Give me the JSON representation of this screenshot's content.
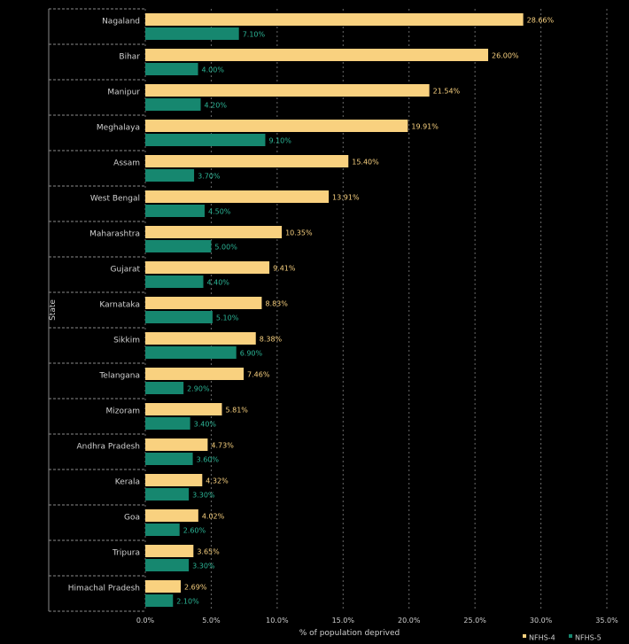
{
  "chart_data": {
    "type": "bar",
    "orientation": "horizontal",
    "categories": [
      "Nagaland",
      "Bihar",
      "Manipur",
      "Meghalaya",
      "Assam",
      "West Bengal",
      "Maharashtra",
      "Gujarat",
      "Karnataka",
      "Sikkim",
      "Telangana",
      "Mizoram",
      "Andhra Pradesh",
      "Kerala",
      "Goa",
      "Tripura",
      "Himachal Pradesh"
    ],
    "series": [
      {
        "name": "NFHS-4",
        "color": "#f9d17f",
        "values": [
          28.66,
          26.0,
          21.54,
          19.91,
          15.4,
          13.91,
          10.35,
          9.41,
          8.83,
          8.38,
          7.46,
          5.81,
          4.73,
          4.32,
          4.02,
          3.65,
          2.69
        ],
        "labels": [
          "28.66%",
          "26.00%",
          "21.54%",
          "19.91%",
          "15.40%",
          "13.91%",
          "10.35%",
          "9.41%",
          "8.83%",
          "8.38%",
          "7.46%",
          "5.81%",
          "4.73%",
          "4.32%",
          "4.02%",
          "3.65%",
          "2.69%"
        ]
      },
      {
        "name": "NFHS-5",
        "color": "#16876f",
        "values": [
          7.1,
          4.0,
          4.2,
          9.1,
          3.7,
          4.5,
          5.0,
          4.4,
          5.1,
          6.9,
          2.9,
          3.4,
          3.6,
          3.3,
          2.6,
          3.3,
          2.1
        ],
        "labels": [
          "7.10%",
          "4.00%",
          "4.20%",
          "9.10%",
          "3.70%",
          "4.50%",
          "5.00%",
          "4.40%",
          "5.10%",
          "6.90%",
          "2.90%",
          "3.40%",
          "3.60%",
          "3.30%",
          "2.60%",
          "3.30%",
          "2.10%"
        ]
      }
    ],
    "xlabel": "% of population deprived",
    "ylabel": "State",
    "xlim": [
      0,
      35
    ],
    "xticks": [
      0,
      5,
      10,
      15,
      20,
      25,
      30,
      35
    ],
    "xtick_labels": [
      "0.0%",
      "5.0%",
      "10.0%",
      "15.0%",
      "20.0%",
      "25.0%",
      "30.0%",
      "35.0%"
    ],
    "grid": "vertical dashed",
    "legend": [
      "NFHS-4",
      "NFHS-5"
    ],
    "legend_position": "bottom-right"
  }
}
